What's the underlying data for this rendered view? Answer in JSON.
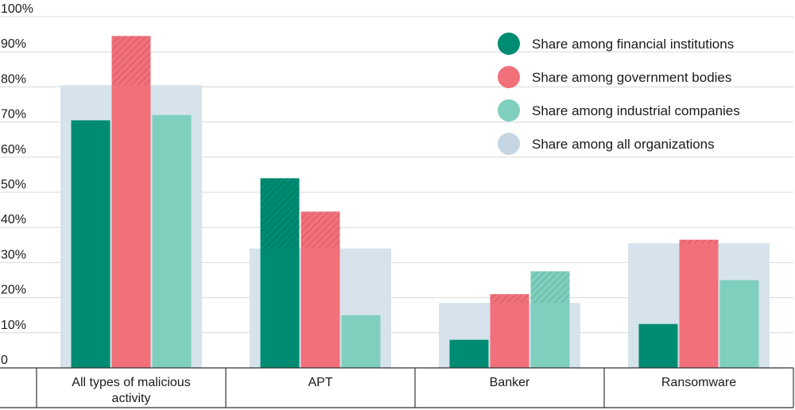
{
  "chart_data": {
    "type": "bar",
    "categories": [
      "All types of malicious activity",
      "APT",
      "Banker",
      "Ransomware"
    ],
    "category_lines": [
      [
        "All types of malicious",
        "activity"
      ],
      [
        "APT"
      ],
      [
        "Banker"
      ],
      [
        "Ransomware"
      ]
    ],
    "series": [
      {
        "name": "Share among financial institutions",
        "color": "#008c72",
        "values": [
          70.5,
          54,
          8,
          12.5
        ]
      },
      {
        "name": "Share among government bodies",
        "color": "#f2707a",
        "values": [
          94.5,
          44.5,
          21,
          36.5
        ]
      },
      {
        "name": "Share among industrial companies",
        "color": "#7fcfbf",
        "values": [
          72,
          15,
          27.5,
          25
        ]
      },
      {
        "name": "Share among all organizations",
        "color": "#d6e3ec",
        "legend_color": "#c5d6e2",
        "values": [
          80.5,
          34,
          18.5,
          35.5
        ]
      }
    ],
    "y_ticks": [
      "0",
      "10%",
      "20%",
      "30%",
      "40%",
      "50%",
      "60%",
      "70%",
      "80%",
      "90%",
      "100%"
    ],
    "ylim": [
      0,
      100
    ],
    "grid": true,
    "legend_position": "top-right",
    "overlap_hatched": true
  }
}
